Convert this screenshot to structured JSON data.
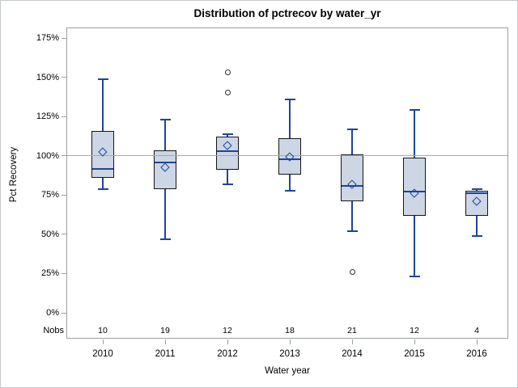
{
  "chart_data": {
    "type": "boxplot",
    "title": "Distribution of pctrecov by water_yr",
    "xlabel": "Water year",
    "ylabel": "Pct Recovery",
    "nobs_row_label": "Nobs",
    "y_axis": {
      "lim": [
        0,
        175
      ],
      "tick_step": 25,
      "ticks": [
        {
          "value": 175,
          "label": "175%"
        },
        {
          "value": 150,
          "label": "150%"
        },
        {
          "value": 125,
          "label": "125%"
        },
        {
          "value": 100,
          "label": "100%"
        },
        {
          "value": 75,
          "label": "75%"
        },
        {
          "value": 50,
          "label": "50%"
        },
        {
          "value": 25,
          "label": "25%"
        },
        {
          "value": 0,
          "label": "0%"
        }
      ]
    },
    "reference_line": 100,
    "grid": false,
    "legend": "none",
    "series": [
      {
        "year": "2010",
        "nobs": "10",
        "low": 79,
        "q1": 86,
        "median": 91.5,
        "q3": 116,
        "high": 149,
        "mean": 102.5,
        "outliers": []
      },
      {
        "year": "2011",
        "nobs": "19",
        "low": 47,
        "q1": 79,
        "median": 95.5,
        "q3": 103.5,
        "high": 123,
        "mean": 92.5,
        "outliers": []
      },
      {
        "year": "2012",
        "nobs": "12",
        "low": 82,
        "q1": 91,
        "median": 103,
        "q3": 112,
        "high": 114,
        "mean": 106.5,
        "outliers": [
          140.5,
          153
        ]
      },
      {
        "year": "2013",
        "nobs": "18",
        "low": 77.5,
        "q1": 88,
        "median": 98,
        "q3": 111,
        "high": 136,
        "mean": 99.5,
        "outliers": []
      },
      {
        "year": "2014",
        "nobs": "21",
        "low": 52,
        "q1": 71,
        "median": 81,
        "q3": 101,
        "high": 117,
        "mean": 82,
        "outliers": [
          26
        ]
      },
      {
        "year": "2015",
        "nobs": "12",
        "low": 23,
        "q1": 62,
        "median": 77,
        "q3": 99,
        "high": 129,
        "mean": 76,
        "outliers": []
      },
      {
        "year": "2016",
        "nobs": "4",
        "low": 49,
        "q1": 62,
        "median": 76,
        "q3": 77.5,
        "high": 79,
        "mean": 71,
        "outliers": []
      }
    ],
    "colors": {
      "box_fill": "#ccd6e5",
      "box_border": "#161616",
      "line_blue": "#1e4598",
      "reference_line": "#a9a9a9",
      "frame": "#9aa0a0",
      "outlier": "#2f2f2f",
      "text": "#000000",
      "background": "#ffffff"
    }
  }
}
